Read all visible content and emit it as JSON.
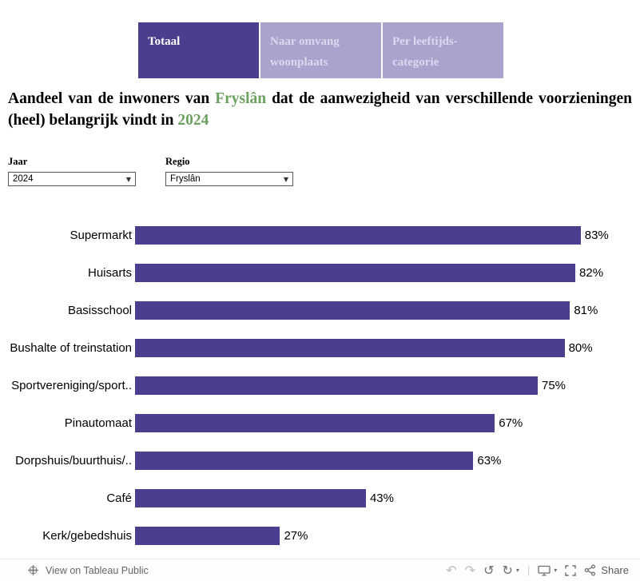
{
  "tabs": [
    {
      "line1": "Totaal",
      "line2": ""
    },
    {
      "line1": "Naar omvang",
      "line2": "woonplaats"
    },
    {
      "line1": "Per leeftijds-",
      "line2": "categorie"
    }
  ],
  "title": {
    "part1": "Aandeel van de inwoners van ",
    "region": "Fryslân",
    "part2": " dat de aanwezigheid van verschillende voorzieningen (heel) belangrijk vindt in ",
    "year": "2024"
  },
  "filters": {
    "jaar": {
      "label": "Jaar",
      "value": "2024"
    },
    "regio": {
      "label": "Regio",
      "value": "Fryslân"
    }
  },
  "chart_data": {
    "type": "bar",
    "orientation": "horizontal",
    "categories": [
      "Supermarkt",
      "Huisarts",
      "Basisschool",
      "Bushalte of treinstation",
      "Sportvereniging/sport..",
      "Pinautomaat",
      "Dorpshuis/buurthuis/..",
      "Café",
      "Kerk/gebedshuis"
    ],
    "values": [
      83,
      82,
      81,
      80,
      75,
      67,
      63,
      43,
      27
    ],
    "unit": "%",
    "xlim": [
      0,
      100
    ],
    "grid": false,
    "value_labels": "outside-end"
  },
  "toolbar": {
    "view_label": "View on Tableau Public",
    "share_label": "Share",
    "glyphs": {
      "undo": "↶",
      "redo": "↷",
      "reset": "↺",
      "refresh": "↻",
      "caret": "▾",
      "separator": "|"
    }
  },
  "colors": {
    "bar": "#4b3e8f",
    "tab_active_bg": "#4b3e8f",
    "tab_active_text": "#ffffff",
    "tab_inactive_bg": "#a9a3ce",
    "tab_inactive_text": "#dcd8ee",
    "accent_green": "#6ba05f"
  }
}
